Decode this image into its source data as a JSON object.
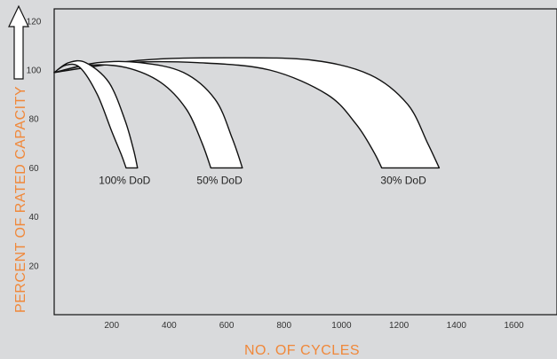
{
  "colors": {
    "background": "#d9dadc",
    "axis_title": "#f0883a",
    "band_fill": "#ffffff",
    "stroke": "#111111"
  },
  "chart_data": {
    "type": "area",
    "title": "",
    "xlabel": "NO. OF CYCLES",
    "ylabel": "PERCENT OF RATED CAPACITY",
    "xlim": [
      0,
      1750
    ],
    "ylim": [
      0,
      125
    ],
    "xticks": [
      "200",
      "400",
      "600",
      "800",
      "1000",
      "1200",
      "1400",
      "1600"
    ],
    "xtick_values": [
      200,
      400,
      600,
      800,
      1000,
      1200,
      1400,
      1600
    ],
    "yticks": [
      "20",
      "40",
      "60",
      "80",
      "100",
      "120"
    ],
    "ytick_values": [
      20,
      40,
      60,
      80,
      100,
      120
    ],
    "grid": false,
    "series": [
      {
        "name": "100% DoD",
        "upper": {
          "x": [
            0,
            50,
            110,
            190,
            245,
            275,
            290
          ],
          "y": [
            99,
            103,
            103,
            95,
            80,
            68,
            60
          ]
        },
        "lower": {
          "x": [
            0,
            40,
            90,
            150,
            200,
            235,
            250
          ],
          "y": [
            99,
            102,
            101,
            90,
            75,
            65,
            60
          ]
        }
      },
      {
        "name": "50% DoD",
        "upper": {
          "x": [
            0,
            150,
            300,
            450,
            560,
            620,
            655
          ],
          "y": [
            99,
            103,
            103,
            99,
            88,
            72,
            60
          ]
        },
        "lower": {
          "x": [
            0,
            120,
            250,
            370,
            460,
            515,
            545
          ],
          "y": [
            99,
            102,
            101,
            95,
            84,
            70,
            60
          ]
        }
      },
      {
        "name": "30% DoD",
        "upper": {
          "x": [
            0,
            300,
            600,
            900,
            1100,
            1230,
            1300,
            1340
          ],
          "y": [
            99,
            104,
            105,
            104,
            98,
            86,
            70,
            60
          ]
        },
        "lower": {
          "x": [
            0,
            250,
            500,
            750,
            950,
            1050,
            1110,
            1140
          ],
          "y": [
            99,
            103,
            103,
            100,
            90,
            78,
            67,
            60
          ]
        }
      }
    ]
  }
}
